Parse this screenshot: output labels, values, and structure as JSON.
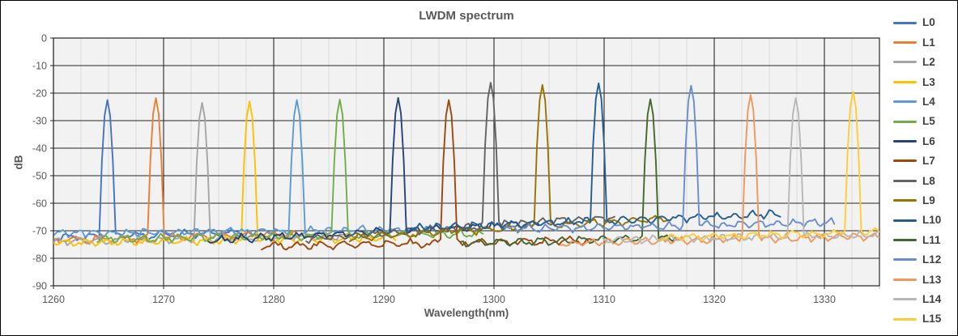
{
  "chart_data": {
    "type": "line",
    "title": "LWDM spectrum",
    "xlabel": "Wavelength(nm)",
    "ylabel": "dB",
    "xlim": [
      1260,
      1335
    ],
    "ylim": [
      -90,
      0
    ],
    "x_ticks": [
      1260,
      1270,
      1280,
      1290,
      1300,
      1310,
      1320,
      1330
    ],
    "x_minor_step": 2.5,
    "y_ticks": [
      0,
      -10,
      -20,
      -30,
      -40,
      -50,
      -60,
      -70,
      -80,
      -90
    ],
    "grid": "on",
    "legend_position": "right",
    "style": {
      "plot_bg": "#F2F2F2",
      "grid_minor": "#D9D9D9",
      "grid_major": "#262626",
      "axis_text": "#595959",
      "legend_text": "#404040",
      "frame": "#000000"
    },
    "series": [
      {
        "name": "L0",
        "color": "#4472C4",
        "peak_nm": 1264.9,
        "peak_db": -22.5,
        "span": [
          1260,
          1278
        ],
        "floor": [
          -72.5,
          -70.5
        ]
      },
      {
        "name": "L1",
        "color": "#ED7D31",
        "peak_nm": 1269.3,
        "peak_db": -21.8,
        "span": [
          1260,
          1282
        ],
        "floor": [
          -73.5,
          -71.0
        ]
      },
      {
        "name": "L2",
        "color": "#A5A5A5",
        "peak_nm": 1273.5,
        "peak_db": -23.5,
        "span": [
          1260,
          1287
        ],
        "floor": [
          -74.0,
          -72.0
        ]
      },
      {
        "name": "L3",
        "color": "#FFC000",
        "peak_nm": 1277.8,
        "peak_db": -23.0,
        "span": [
          1260,
          1291
        ],
        "floor": [
          -74.5,
          -72.5
        ]
      },
      {
        "name": "L4",
        "color": "#5B9BD5",
        "peak_nm": 1282.1,
        "peak_db": -22.5,
        "span": [
          1260,
          1295
        ],
        "floor": [
          -71.0,
          -69.5
        ]
      },
      {
        "name": "L5",
        "color": "#70AD47",
        "peak_nm": 1286.0,
        "peak_db": -22.3,
        "span": [
          1264,
          1299
        ],
        "floor": [
          -73.0,
          -71.0
        ]
      },
      {
        "name": "L6",
        "color": "#264478",
        "peak_nm": 1291.3,
        "peak_db": -21.7,
        "span": [
          1274,
          1304
        ],
        "floor": [
          -73.5,
          -67.5
        ]
      },
      {
        "name": "L7",
        "color": "#9E480E",
        "peak_nm": 1295.9,
        "peak_db": -22.5,
        "span": [
          1279,
          1309
        ],
        "floor": [
          -75.5,
          -73.5
        ]
      },
      {
        "name": "L8",
        "color": "#636363",
        "peak_nm": 1299.7,
        "peak_db": -16.2,
        "span": [
          1283,
          1311
        ],
        "floor": [
          -73.0,
          -65.0
        ]
      },
      {
        "name": "L9",
        "color": "#997300",
        "peak_nm": 1304.4,
        "peak_db": -17.0,
        "span": [
          1287,
          1316
        ],
        "floor": [
          -72.5,
          -65.5
        ]
      },
      {
        "name": "L10",
        "color": "#255E91",
        "peak_nm": 1309.5,
        "peak_db": -16.4,
        "span": [
          1292,
          1326
        ],
        "floor": [
          -69.0,
          -64.0
        ]
      },
      {
        "name": "L11",
        "color": "#43682B",
        "peak_nm": 1314.2,
        "peak_db": -22.2,
        "span": [
          1297,
          1317
        ],
        "floor": [
          -74.5,
          -72.5
        ]
      },
      {
        "name": "L12",
        "color": "#698ED0",
        "peak_nm": 1317.9,
        "peak_db": -17.3,
        "span": [
          1301,
          1331
        ],
        "floor": [
          -69.5,
          -67.0
        ]
      },
      {
        "name": "L13",
        "color": "#F1975A",
        "peak_nm": 1323.3,
        "peak_db": -20.6,
        "span": [
          1306,
          1335
        ],
        "floor": [
          -74.5,
          -72.0
        ]
      },
      {
        "name": "L14",
        "color": "#B7B7B7",
        "peak_nm": 1327.4,
        "peak_db": -21.8,
        "span": [
          1310,
          1335
        ],
        "floor": [
          -73.5,
          -71.5
        ]
      },
      {
        "name": "L15",
        "color": "#FFCD33",
        "peak_nm": 1332.6,
        "peak_db": -19.4,
        "span": [
          1315,
          1335
        ],
        "floor": [
          -72.5,
          -70.5
        ]
      }
    ]
  }
}
